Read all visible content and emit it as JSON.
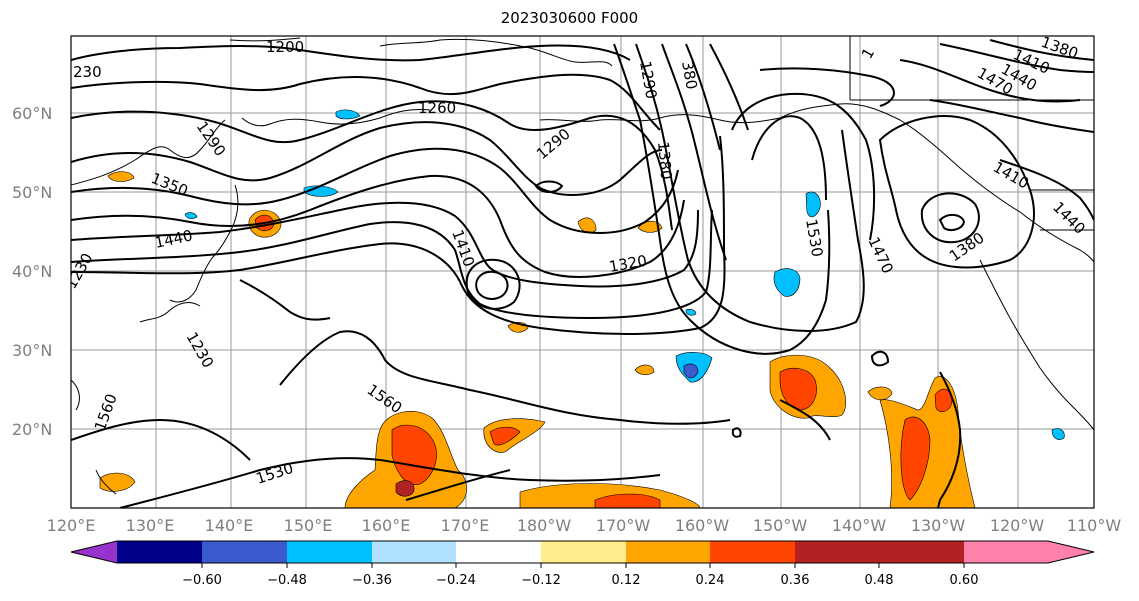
{
  "title": "2023030600 F000",
  "map": {
    "lon_labels": [
      "120°E",
      "130°E",
      "140°E",
      "150°E",
      "160°E",
      "170°E",
      "180°W",
      "170°W",
      "160°W",
      "150°W",
      "140°W",
      "130°W",
      "120°W",
      "110°W"
    ],
    "lat_labels": [
      "20°N",
      "30°N",
      "40°N",
      "50°N",
      "60°N"
    ],
    "contour_labels": [
      "1200",
      "230",
      "1260",
      "1290",
      "1290",
      "1350",
      "1440",
      "1410",
      "1320",
      "1530",
      "1470",
      "1410",
      "1380",
      "1380",
      "1560",
      "1560",
      "1530",
      "1440",
      "1470",
      "1410",
      "1380",
      "1440",
      "1290",
      "380",
      "1",
      "1230",
      "1230"
    ]
  },
  "colorbar": {
    "ticks": [
      "−0.60",
      "−0.48",
      "−0.36",
      "−0.24",
      "−0.12",
      "0.12",
      "0.24",
      "0.36",
      "0.48",
      "0.60"
    ],
    "colors": [
      "#9932cc",
      "#00008b",
      "#3a5acd",
      "#00bfff",
      "#b0e2ff",
      "#ffffff",
      "#ffec8b",
      "#ffa500",
      "#ff4500",
      "#b22222",
      "#ff82ab"
    ]
  }
}
